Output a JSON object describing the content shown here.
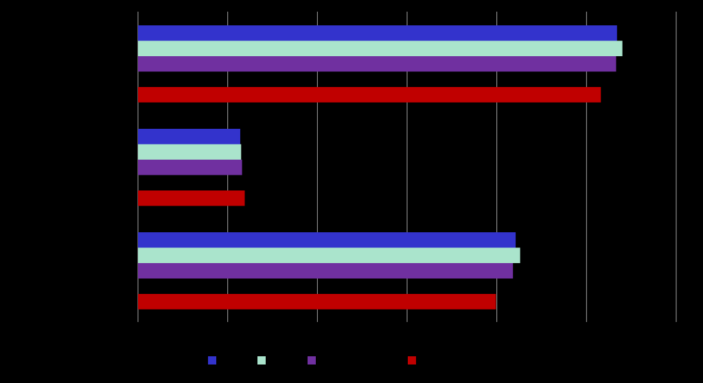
{
  "chart_data": {
    "type": "bar",
    "orientation": "horizontal",
    "categories": [
      "",
      "",
      ""
    ],
    "series": [
      {
        "values": [
          5.34,
          1.14,
          4.21
        ],
        "color": "#3333cc"
      },
      {
        "values": [
          5.4,
          1.15,
          4.26
        ],
        "color": "#aae4cc"
      },
      {
        "values": [
          5.33,
          1.16,
          4.18
        ],
        "color": "#7030a0"
      },
      {
        "values": [
          5.16,
          1.19,
          3.99
        ],
        "color": "#c00000"
      }
    ],
    "xlim": [
      0,
      6
    ],
    "grid": true,
    "legend_position": "bottom",
    "background_color": "#000000",
    "gridline_color": "#a6a6a6"
  }
}
